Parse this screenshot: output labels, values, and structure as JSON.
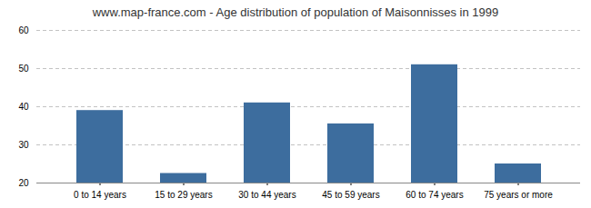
{
  "chart_data": {
    "type": "bar",
    "title": "www.map-france.com - Age distribution of population of Maisonnisses in 1999",
    "categories": [
      "0 to 14 years",
      "15 to 29 years",
      "30 to 44 years",
      "45 to 59 years",
      "60 to 74 years",
      "75 years or more"
    ],
    "values": [
      39,
      22.5,
      41,
      35.5,
      51,
      25
    ],
    "color": "#3d6d9e",
    "ylim": [
      20,
      60
    ],
    "yticks": [
      20,
      30,
      40,
      50,
      60
    ],
    "grid": true
  }
}
